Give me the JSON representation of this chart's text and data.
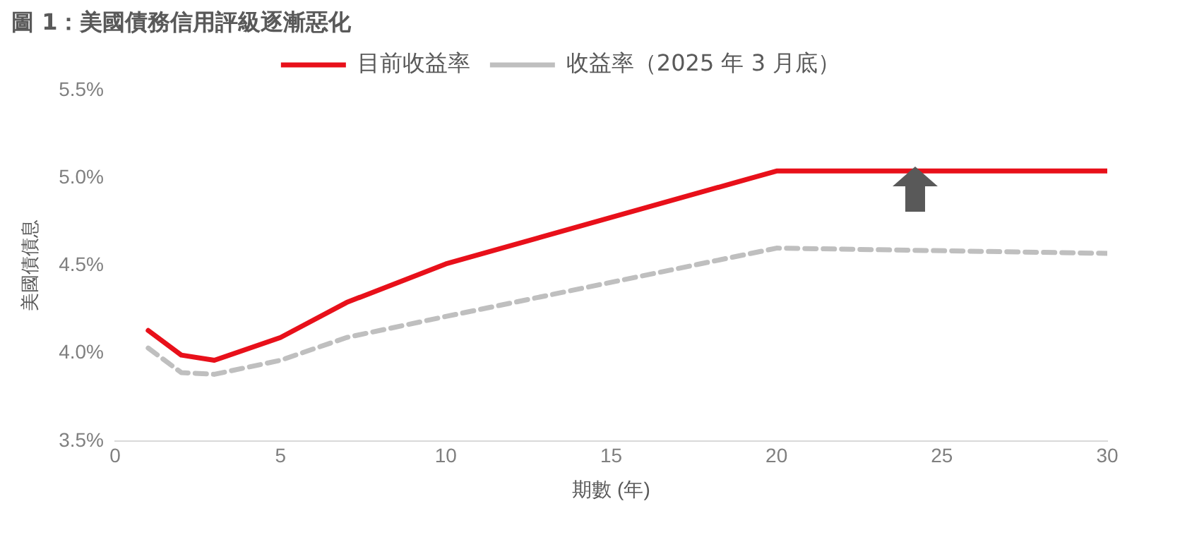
{
  "chart_data": {
    "type": "line",
    "title": "圖 1：美國債務信用評級逐漸惡化",
    "xlabel": "期數 (年)",
    "ylabel": "美國債債息",
    "x": [
      1,
      2,
      3,
      5,
      7,
      10,
      20,
      30
    ],
    "series": [
      {
        "name": "目前收益率",
        "color": "#e8101a",
        "line_style": "solid",
        "values": [
          4.13,
          3.99,
          3.96,
          4.09,
          4.29,
          4.51,
          5.04,
          5.04
        ]
      },
      {
        "name": "收益率（2025 年 3 月底）",
        "color": "#bfbfbf",
        "line_style": "dashed",
        "values": [
          4.03,
          3.89,
          3.88,
          3.96,
          4.09,
          4.21,
          4.6,
          4.57
        ]
      }
    ],
    "xlim": [
      0,
      30
    ],
    "xticks": [
      0,
      5,
      10,
      15,
      20,
      25,
      30
    ],
    "ylim": [
      3.5,
      5.5
    ],
    "yticks": [
      {
        "value": 3.5,
        "label": "3.5%"
      },
      {
        "value": 4,
        "label": "4.0%"
      },
      {
        "value": 4.5,
        "label": "4.5%"
      },
      {
        "value": 5,
        "label": "5.0%"
      },
      {
        "value": 5.5,
        "label": "5.5%"
      }
    ],
    "grid": false,
    "legend": "top",
    "marker": "none"
  }
}
